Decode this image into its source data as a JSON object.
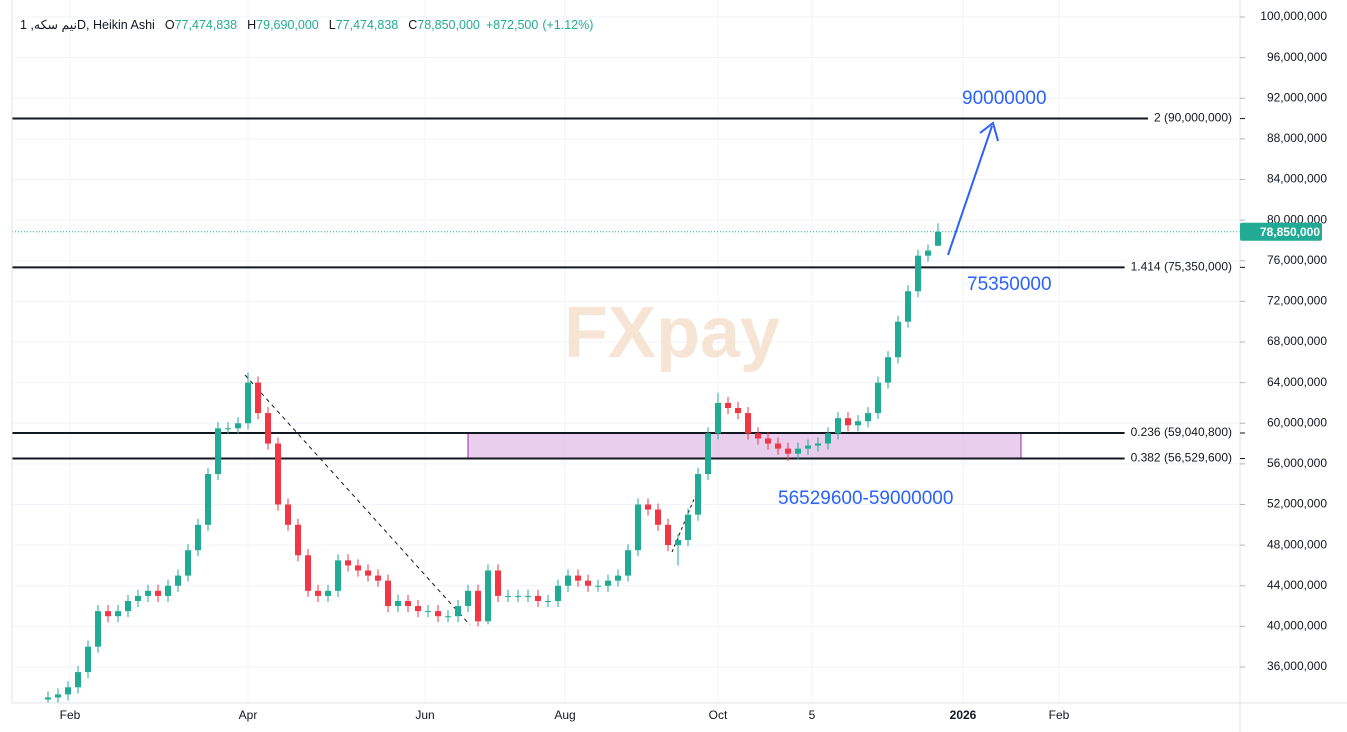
{
  "chart_data": {
    "type": "candlestick",
    "legend": {
      "symbol": "نیم سکه, 1D, Heikin Ashi",
      "fields": [
        {
          "key": "O",
          "value": 77474838,
          "label": "77,474,838"
        },
        {
          "key": "H",
          "value": 79690000,
          "label": "79,690,000"
        },
        {
          "key": "L",
          "value": 77474838,
          "label": "77,474,838"
        },
        {
          "key": "C",
          "value": 78850000,
          "label": "78,850,000"
        }
      ],
      "change": {
        "value": 872500,
        "label": "+872,500"
      },
      "change_pct": {
        "value": 1.12,
        "label": "(+1.12%)"
      }
    },
    "up_color": "#22ab94",
    "down_color": "#f23645",
    "open": [
      32800000,
      33000000,
      33300000,
      34000000,
      35500000,
      38000000,
      41500000,
      41000000,
      41500000,
      42500000,
      43000000,
      43500000,
      43000000,
      44000000,
      45000000,
      47500000,
      50000000,
      55000000,
      59500000,
      59500000,
      60000000,
      64000000,
      61000000,
      58000000,
      52000000,
      50000000,
      47000000,
      43500000,
      43000000,
      43500000,
      46500000,
      46000000,
      45500000,
      45000000,
      44500000,
      42000000,
      42500000,
      42000000,
      41500000,
      41500000,
      41000000,
      41000000,
      42000000,
      43500000,
      40500000,
      45500000,
      43000000,
      43000000,
      43000000,
      43000000,
      42500000,
      42500000,
      44000000,
      45000000,
      44500000,
      44000000,
      44000000,
      44500000,
      45000000,
      47500000,
      52000000,
      51500000,
      50000000,
      48000000,
      48500000,
      51000000,
      55000000,
      59000000,
      62000000,
      61500000,
      61000000,
      59000000,
      58500000,
      58000000,
      57500000,
      57000000,
      57500000,
      57800000,
      58000000,
      59000000,
      60500000,
      59800000,
      60200000,
      61000000,
      64000000,
      66500000,
      70000000,
      73000000,
      76500000,
      77474838
    ],
    "high": [
      33600000,
      33900000,
      34600000,
      36100000,
      38600000,
      42100000,
      42100000,
      42100000,
      43100000,
      43600000,
      44100000,
      44100000,
      44600000,
      45600000,
      48100000,
      50600000,
      55600000,
      60100000,
      60100000,
      60600000,
      65000000,
      64600000,
      61600000,
      58600000,
      52600000,
      50600000,
      47600000,
      44100000,
      44100000,
      47100000,
      47100000,
      46600000,
      46100000,
      45600000,
      45100000,
      43100000,
      43100000,
      42600000,
      42100000,
      42100000,
      41600000,
      42600000,
      44100000,
      44100000,
      46100000,
      46100000,
      43600000,
      43600000,
      43600000,
      43600000,
      43100000,
      44600000,
      45600000,
      45600000,
      45100000,
      44600000,
      45100000,
      45600000,
      48100000,
      52600000,
      52600000,
      52100000,
      50600000,
      49100000,
      51600000,
      55600000,
      59600000,
      63000000,
      62600000,
      62100000,
      61600000,
      59600000,
      59100000,
      58600000,
      58100000,
      58100000,
      58400000,
      58600000,
      59600000,
      61100000,
      61100000,
      60800000,
      61600000,
      64600000,
      67100000,
      70600000,
      73600000,
      77100000,
      77600000,
      79690000
    ],
    "low": [
      32200000,
      32400000,
      32700000,
      33400000,
      34900000,
      37400000,
      40400000,
      40400000,
      40900000,
      41900000,
      42400000,
      42400000,
      42400000,
      43400000,
      44400000,
      46900000,
      49400000,
      54400000,
      58900000,
      58900000,
      59400000,
      60400000,
      57400000,
      51400000,
      49400000,
      46400000,
      42900000,
      42400000,
      42400000,
      42900000,
      45400000,
      44900000,
      44400000,
      43900000,
      41400000,
      41400000,
      41400000,
      40900000,
      40900000,
      40400000,
      40400000,
      40400000,
      41400000,
      40000000,
      40200000,
      42400000,
      42400000,
      42400000,
      42400000,
      41900000,
      41900000,
      41900000,
      43400000,
      43900000,
      43400000,
      43400000,
      43400000,
      43900000,
      44400000,
      46900000,
      50900000,
      49400000,
      47400000,
      46000000,
      47900000,
      50400000,
      54400000,
      58400000,
      60900000,
      60400000,
      58400000,
      57900000,
      57400000,
      56900000,
      56300000,
      56400000,
      56900000,
      57200000,
      57400000,
      58400000,
      59200000,
      59200000,
      59600000,
      60400000,
      63400000,
      65900000,
      69400000,
      72400000,
      75900000,
      77474838
    ],
    "close": [
      33000000,
      33300000,
      34000000,
      35500000,
      38000000,
      41500000,
      41000000,
      41500000,
      42500000,
      43000000,
      43500000,
      43000000,
      44000000,
      45000000,
      47500000,
      50000000,
      55000000,
      59500000,
      59500000,
      60000000,
      64000000,
      61000000,
      58000000,
      52000000,
      50000000,
      47000000,
      43500000,
      43000000,
      43500000,
      46500000,
      46000000,
      45500000,
      45000000,
      44500000,
      42000000,
      42500000,
      42000000,
      41500000,
      41500000,
      41000000,
      41000000,
      42000000,
      43500000,
      40500000,
      45500000,
      43000000,
      43000000,
      43000000,
      43000000,
      42500000,
      42500000,
      44000000,
      45000000,
      44500000,
      44000000,
      44000000,
      44500000,
      45000000,
      47500000,
      52000000,
      51500000,
      50000000,
      48000000,
      48500000,
      51000000,
      55000000,
      59000000,
      62000000,
      61500000,
      61000000,
      59000000,
      58500000,
      58000000,
      57500000,
      57000000,
      57500000,
      57800000,
      58000000,
      59000000,
      60500000,
      59800000,
      60200000,
      61000000,
      64000000,
      66500000,
      70000000,
      73000000,
      76500000,
      77000000,
      78850000
    ],
    "xlim": [
      -3.6,
      119.2
    ],
    "xticks": [
      {
        "value": 2.2,
        "label": "Feb"
      },
      {
        "value": 20,
        "label": "Apr"
      },
      {
        "value": 37.7,
        "label": "Jun"
      },
      {
        "value": 51.7,
        "label": "Aug"
      },
      {
        "value": 67,
        "label": "Oct"
      },
      {
        "value": 76.4,
        "label": "5"
      },
      {
        "value": 91.5,
        "label": "2026"
      },
      {
        "value": 101.1,
        "label": "Feb"
      }
    ],
    "ylim": [
      32750000,
      101673846
    ],
    "yticks": [
      {
        "value": 36000000,
        "label": "36,000,000"
      },
      {
        "value": 40000000,
        "label": "40,000,000"
      },
      {
        "value": 44000000,
        "label": "44,000,000"
      },
      {
        "value": 48000000,
        "label": "48,000,000"
      },
      {
        "value": 52000000,
        "label": "52,000,000"
      },
      {
        "value": 56000000,
        "label": "56,000,000"
      },
      {
        "value": 60000000,
        "label": "60,000,000"
      },
      {
        "value": 64000000,
        "label": "64,000,000"
      },
      {
        "value": 68000000,
        "label": "68,000,000"
      },
      {
        "value": 72000000,
        "label": "72,000,000"
      },
      {
        "value": 76000000,
        "label": "76,000,000"
      },
      {
        "value": 80000000,
        "label": "80,000,000"
      },
      {
        "value": 84000000,
        "label": "84,000,000"
      },
      {
        "value": 88000000,
        "label": "88,000,000"
      },
      {
        "value": 92000000,
        "label": "92,000,000"
      },
      {
        "value": 96000000,
        "label": "96,000,000"
      },
      {
        "value": 100000000,
        "label": "100,000,000"
      }
    ],
    "grid": true,
    "last_price": {
      "value": 78850000,
      "label": "78,850,000"
    },
    "levels": [
      {
        "value": 90000000,
        "label": "2 (90,000,000)"
      },
      {
        "value": 75350000,
        "label": "1.414 (75,350,000)"
      },
      {
        "value": 59040800,
        "label": "0.236 (59,040,800)"
      },
      {
        "value": 56529600,
        "label": "0.382 (56,529,600)"
      }
    ],
    "zone": {
      "low": 56529600,
      "high": 59000000,
      "color": "#e1bee7"
    },
    "annotations": [
      "90000000",
      "75350000",
      "56529600-59000000"
    ],
    "watermark": "FXpay"
  }
}
